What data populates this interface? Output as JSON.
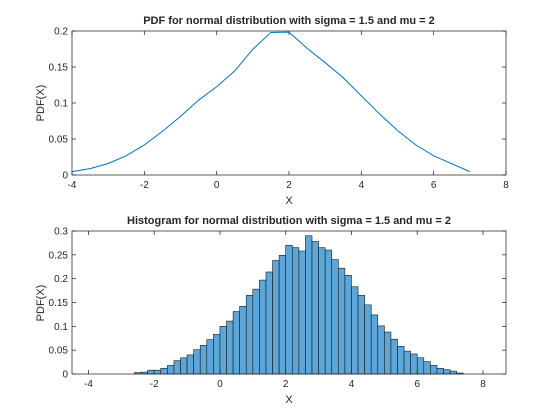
{
  "chart_data": [
    {
      "type": "line",
      "title": "PDF for normal distribution with sigma = 1.5 and mu = 2",
      "xlabel": "X",
      "ylabel": "PDF(X)",
      "xlim": [
        -4,
        8
      ],
      "ylim": [
        0,
        0.2
      ],
      "xticks": [
        "-4",
        "-2",
        "0",
        "2",
        "4",
        "6",
        "8"
      ],
      "yticks": [
        "0",
        "0.05",
        "0.1",
        "0.15",
        "0.2"
      ],
      "grid": false,
      "series": [
        {
          "color": "#0072bd",
          "x": [
            -4,
            -3.5,
            -3,
            -2.5,
            -2,
            -1.5,
            -1,
            -0.5,
            0,
            0.5,
            1,
            1.5,
            2,
            2.5,
            3,
            3.5,
            4,
            4.5,
            5,
            5.5,
            6,
            6.5,
            7
          ],
          "y": [
            0.0047,
            0.0089,
            0.016,
            0.0267,
            0.0418,
            0.0606,
            0.0814,
            0.1039,
            0.1226,
            0.1446,
            0.1747,
            0.198,
            0.1985,
            0.176,
            0.156,
            0.135,
            0.11,
            0.085,
            0.0618,
            0.042,
            0.0266,
            0.0157,
            0.0047
          ]
        }
      ]
    },
    {
      "type": "bar",
      "title": "Histogram for normal distribution with sigma = 1.5 and mu = 2",
      "xlabel": "X",
      "ylabel": "PDF(X)",
      "xlim": [
        -4.5,
        8.7
      ],
      "ylim": [
        0,
        0.3
      ],
      "xticks": [
        "-4",
        "-2",
        "0",
        "2",
        "4",
        "6",
        "8"
      ],
      "yticks": [
        "0",
        "0.05",
        "0.1",
        "0.15",
        "0.2",
        "0.25",
        "0.3"
      ],
      "grid": false,
      "bin_width": 0.2,
      "bin_start": -2.6,
      "values": [
        0.003,
        0.004,
        0.008,
        0.008,
        0.012,
        0.018,
        0.028,
        0.034,
        0.04,
        0.051,
        0.06,
        0.072,
        0.083,
        0.1,
        0.111,
        0.131,
        0.142,
        0.165,
        0.178,
        0.197,
        0.214,
        0.238,
        0.249,
        0.27,
        0.265,
        0.258,
        0.29,
        0.278,
        0.265,
        0.26,
        0.24,
        0.222,
        0.207,
        0.183,
        0.165,
        0.145,
        0.124,
        0.101,
        0.088,
        0.073,
        0.058,
        0.048,
        0.042,
        0.034,
        0.026,
        0.018,
        0.012,
        0.009,
        0.006,
        0.002
      ],
      "color": "#5ca6d9"
    }
  ]
}
